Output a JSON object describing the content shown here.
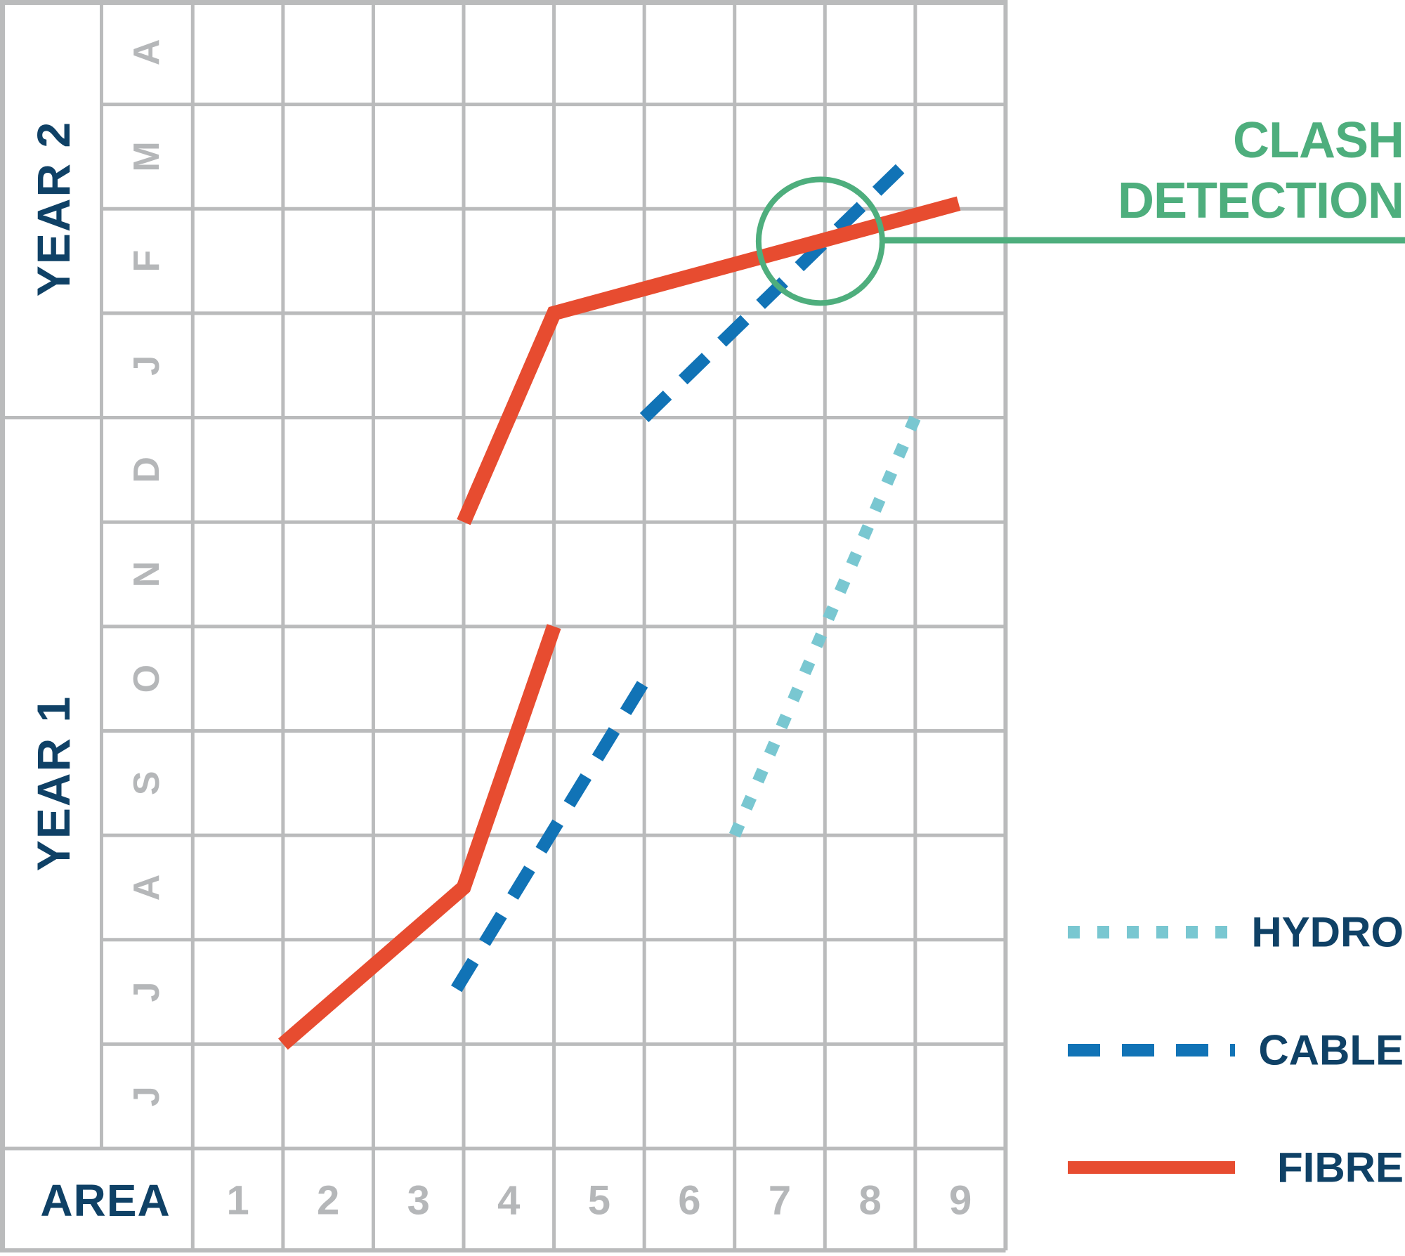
{
  "colors": {
    "navy_text": "#0F4166",
    "gray_grid": "#BABBBC",
    "gray_text": "#B5B7B9",
    "green_accent": "#4EAE7D",
    "fibre_red": "#E74C30",
    "cable_blue": "#1173B6",
    "hydro_teal": "#79C7D1"
  },
  "chart_data": {
    "type": "line",
    "subtype": "time-location (march) chart: vertical axis = time (months grouped by year, time flows upward), horizontal axis = work areas",
    "x_axis": {
      "label": "AREA",
      "categories": [
        "1",
        "2",
        "3",
        "4",
        "5",
        "6",
        "7",
        "8",
        "9"
      ]
    },
    "y_axis": {
      "years": [
        {
          "label": "YEAR 2",
          "months_top_to_bottom": [
            "A",
            "M",
            "F",
            "J"
          ]
        },
        {
          "label": "YEAR 1",
          "months_top_to_bottom": [
            "D",
            "N",
            "O",
            "S",
            "A",
            "J",
            "J"
          ]
        }
      ],
      "time_units": "t = months after 1 June of Year 1 (chart bottom edge); 1 unit = 1 month row; chart top = 1 May Year 2 (t=11)",
      "area_units": "a = area number; a=k is the left boundary (start) of area k; a=10 is the right edge of area 9"
    },
    "series": [
      {
        "name": "HYDRO",
        "style": "dotted",
        "color_key": "hydro_teal",
        "segments_areatime": [
          [
            [
              7.0,
              3.0
            ],
            [
              9.0,
              7.0
            ]
          ]
        ],
        "readable": "Hydro: from start of area 7 at 1 Sep (Year 1) to start of area 9 at 1 Jan (Year 2)"
      },
      {
        "name": "CABLE",
        "style": "dashed",
        "color_key": "cable_blue",
        "segments_areatime": [
          [
            [
              3.92,
              1.53
            ],
            [
              6.06,
              4.56
            ]
          ],
          [
            [
              6.0,
              7.0
            ],
            [
              8.85,
              9.4
            ]
          ]
        ],
        "readable": "Cable: segment 1 from late area 3 at mid-July (Year 1) to start of area 6 at mid-October (Year 1); segment 2 from start of area 6 at 1 Jan (Year 2) to late area 8 at mid-March (Year 2)"
      },
      {
        "name": "FIBRE",
        "style": "solid",
        "color_key": "fibre_red",
        "segments_areatime": [
          [
            [
              2.0,
              1.0
            ],
            [
              4.0,
              2.5
            ],
            [
              5.0,
              5.0
            ]
          ],
          [
            [
              4.0,
              6.0
            ],
            [
              5.0,
              8.0
            ],
            [
              9.48,
              9.05
            ]
          ]
        ],
        "readable": "Fibre: segment 1 from start of area 2 at 1 Jul (Year 1), bend at start of area 4 at mid-Aug, ending start of area 5 at 1 Nov (Year 1); segment 2 from start of area 4 at 1 Dec (Year 1), bend at start of area 5 at 1 Feb (Year 2), ending mid area 9 at ~1 Mar (Year 2)"
      }
    ],
    "annotation": {
      "line1": "CLASH",
      "line2": "DETECTION",
      "color_key": "green_accent",
      "circle_areatime": {
        "a": 7.95,
        "t": 8.69,
        "radius_px": 88
      },
      "readable": "Green circle highlights the clash where CABLE crosses FIBRE in area 8 around mid-February (Year 2), with a leader line to the label at the right edge"
    },
    "legend_position": "bottom-right, outside plot"
  },
  "legend": {
    "items": [
      {
        "label": "HYDRO",
        "style": "dotted",
        "color_key": "hydro_teal"
      },
      {
        "label": "CABLE",
        "style": "dashed",
        "color_key": "cable_blue"
      },
      {
        "label": "FIBRE",
        "style": "solid",
        "color_key": "fibre_red"
      }
    ]
  }
}
